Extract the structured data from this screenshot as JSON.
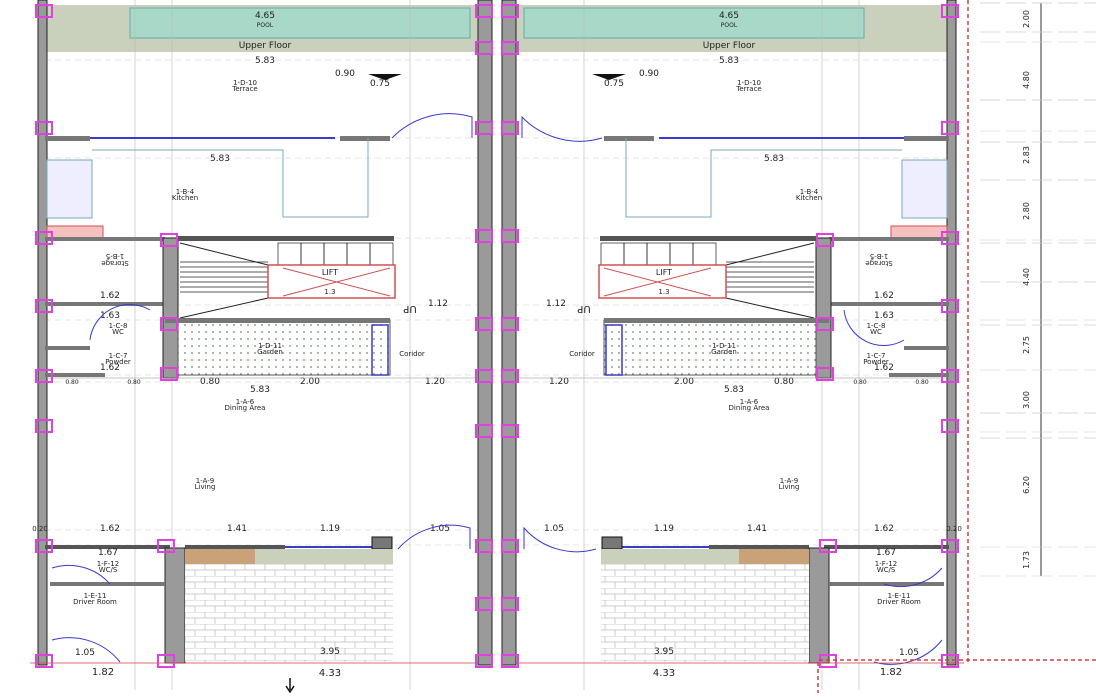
{
  "plan": {
    "units": [
      {
        "pool_dim": "4.65",
        "pool_label": "POOL",
        "upper_floor": "Upper Floor",
        "terrace_width": "5.83",
        "terrace_code": "1-D-10",
        "terrace_label": "Terrace",
        "level_high": "0.90",
        "level_low": "0.75",
        "kitchen_width": "5.83",
        "kitchen_code": "1-B-4",
        "kitchen_label": "Kitchen",
        "storage_code": "1-B-5",
        "storage_label": "Storage",
        "dim_storage": "1.62",
        "dim_wc": "1.63",
        "wc_code": "1-C-8",
        "wc_label": "WC",
        "powder_code": "1-C-7",
        "powder_label": "Powder",
        "dim_powder": "1.62",
        "lift_label": "LIFT",
        "lift_dim": "1.3",
        "stair_label": "UP",
        "stair_dim": "1.12",
        "garden_code": "1-D-11",
        "garden_label": "Garden",
        "corridor_label": "Coridor",
        "dims_row1": [
          "0.80",
          "0.80",
          "0.80",
          "2.00",
          "1.20"
        ],
        "dims_row1_total": "5.83",
        "dining_code": "1-A-6",
        "dining_label": "Dining Area",
        "living_code": "1-A-9",
        "living_label": "Living",
        "dims_row2": [
          "0.20",
          "1.62",
          "1.41",
          "1.19",
          "1.05"
        ],
        "dim_wcs": "1.67",
        "wcs_code": "1-F-12",
        "wcs_label": "WC/S",
        "driver_code": "1-E-11",
        "driver_label": "Driver Room",
        "dim_driver_door": "1.05",
        "dim_driver": "1.82",
        "garage_dim": "3.95",
        "garage_total": "4.33"
      }
    ],
    "side_dimensions": [
      "2.00",
      "4.80",
      "2.83",
      "2.80",
      "4.40",
      "2.75",
      "3.00",
      "6.20",
      "1.73"
    ],
    "colors": {
      "wall": "#9a9a9a",
      "column": "#e040e0",
      "pool": "#a8d8c8",
      "upper": "#c9d1bd",
      "door": "#3a3acc",
      "lift": "#d05050",
      "boundary": "#d04040"
    }
  }
}
